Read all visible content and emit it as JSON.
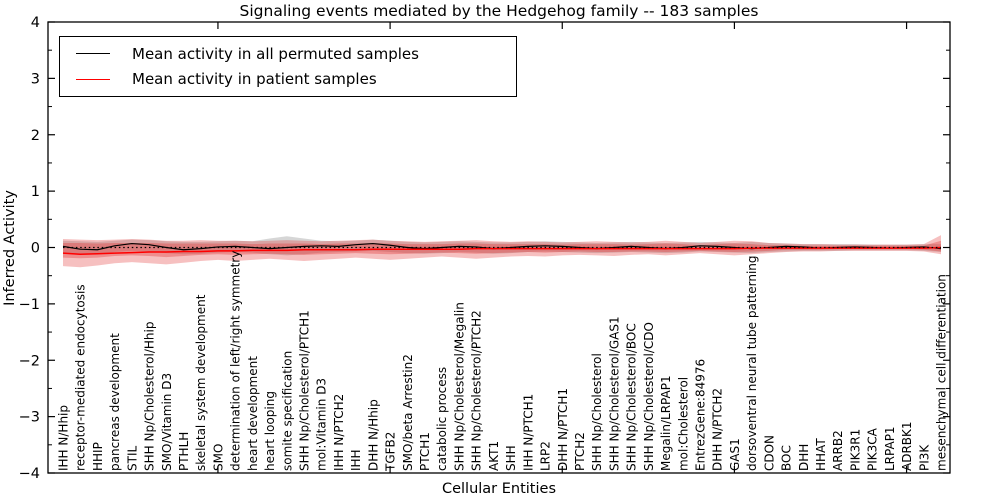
{
  "title": "Signaling events mediated by the Hedgehog family -- 183 samples",
  "axes": {
    "xlabel": "Cellular Entities",
    "ylabel": "Inferred Activity"
  },
  "legend": {
    "position": "upper left",
    "items": [
      {
        "label": "Mean activity in all permuted samples",
        "color": "#000000"
      },
      {
        "label": "Mean activity in patient samples",
        "color": "#ff0000"
      }
    ]
  },
  "chart_data": {
    "type": "line",
    "title": "Signaling events mediated by the Hedgehog family -- 183 samples",
    "xlabel": "Cellular Entities",
    "ylabel": "Inferred Activity",
    "ylim": [
      -4,
      4
    ],
    "yticks": [
      4,
      3,
      2,
      1,
      0,
      -1,
      -2,
      -3,
      -4
    ],
    "y_minor_step": 0.5,
    "x_major_ticks_at_category_numbers": [
      10,
      20,
      30,
      40,
      50
    ],
    "grid": false,
    "zero_line": {
      "style": "dotted",
      "color": "#000000",
      "y": 0
    },
    "categories": [
      "IHH N/Hhip",
      "receptor-mediated endocytosis",
      "HHIP",
      "pancreas development",
      "STIL",
      "SHH Np/Cholesterol/Hhip",
      "SMO/Vitamin D3",
      "PTHLH",
      "skeletal system development",
      "SMO",
      "determination of left/right symmetry",
      "heart development",
      "heart looping",
      "somite specification",
      "SHH Np/Cholesterol/PTCH1",
      "mol:Vitamin D3",
      "IHH N/PTCH2",
      "IHH",
      "DHH N/Hhip",
      "TGFB2",
      "SMO/beta Arrestin2",
      "PTCH1",
      "catabolic process",
      "SHH Np/Cholesterol/Megalin",
      "SHH Np/Cholesterol/PTCH2",
      "AKT1",
      "SHH",
      "IHH N/PTCH1",
      "LRP2",
      "DHH N/PTCH1",
      "PTCH2",
      "SHH Np/Cholesterol",
      "SHH Np/Cholesterol/GAS1",
      "SHH Np/Cholesterol/BOC",
      "SHH Np/Cholesterol/CDO",
      "Megalin/LRPAP1",
      "mol:Cholesterol",
      "EntrezGene:84976",
      "DHH N/PTCH2",
      "GAS1",
      "dorsoventral neural tube patterning",
      "CDON",
      "BOC",
      "DHH",
      "HHAT",
      "ARRB2",
      "PIK3R1",
      "PIK3CA",
      "LRPAP1",
      "ADRBK1",
      "PI3K",
      "mesenchymal cell differentiation"
    ],
    "series": [
      {
        "name": "Mean activity in all permuted samples",
        "color": "#000000",
        "values": [
          0.02,
          -0.03,
          -0.04,
          0.03,
          0.07,
          0.05,
          0.0,
          -0.04,
          -0.02,
          0.01,
          0.02,
          0.0,
          -0.02,
          0.0,
          0.02,
          0.03,
          0.02,
          0.05,
          0.07,
          0.04,
          0.0,
          -0.02,
          0.0,
          0.02,
          0.01,
          -0.02,
          0.0,
          0.02,
          0.03,
          0.02,
          0.0,
          -0.02,
          0.0,
          0.02,
          0.0,
          -0.02,
          0.0,
          0.03,
          0.02,
          0.0,
          -0.02,
          0.0,
          0.02,
          0.01,
          -0.01,
          0.0,
          0.01,
          0.0,
          -0.01,
          0.0,
          0.01,
          -0.02
        ]
      },
      {
        "name": "Mean activity in patient samples",
        "color": "#ff0000",
        "values": [
          -0.1,
          -0.12,
          -0.11,
          -0.1,
          -0.09,
          -0.08,
          -0.08,
          -0.07,
          -0.07,
          -0.06,
          -0.06,
          -0.05,
          -0.05,
          -0.05,
          -0.04,
          -0.04,
          -0.04,
          -0.04,
          -0.03,
          -0.03,
          -0.03,
          -0.03,
          -0.03,
          -0.03,
          -0.02,
          -0.02,
          -0.02,
          -0.02,
          -0.02,
          -0.02,
          -0.02,
          -0.02,
          -0.02,
          -0.02,
          -0.02,
          -0.02,
          -0.02,
          -0.02,
          -0.02,
          -0.02,
          -0.01,
          -0.01,
          -0.01,
          -0.01,
          -0.01,
          -0.01,
          -0.01,
          -0.01,
          -0.01,
          -0.01,
          -0.01,
          0.0
        ]
      }
    ],
    "bands": [
      {
        "name": "permuted samples range",
        "color": "#999999",
        "opacity": 0.4,
        "upper": [
          0.12,
          0.11,
          0.1,
          0.12,
          0.14,
          0.13,
          0.11,
          0.1,
          0.1,
          0.11,
          0.12,
          0.11,
          0.16,
          0.2,
          0.16,
          0.12,
          0.11,
          0.12,
          0.14,
          0.12,
          0.1,
          0.09,
          0.1,
          0.11,
          0.1,
          0.09,
          0.09,
          0.1,
          0.11,
          0.1,
          0.09,
          0.08,
          0.09,
          0.1,
          0.09,
          0.08,
          0.09,
          0.1,
          0.09,
          0.08,
          0.1,
          0.08,
          0.07,
          0.06,
          0.06,
          0.06,
          0.06,
          0.05,
          0.05,
          0.05,
          0.06,
          0.06
        ],
        "lower": [
          -0.1,
          -0.12,
          -0.12,
          -0.08,
          -0.06,
          -0.07,
          -0.1,
          -0.12,
          -0.11,
          -0.09,
          -0.08,
          -0.09,
          -0.12,
          -0.14,
          -0.12,
          -0.09,
          -0.08,
          -0.07,
          -0.06,
          -0.08,
          -0.1,
          -0.11,
          -0.1,
          -0.08,
          -0.09,
          -0.11,
          -0.1,
          -0.08,
          -0.07,
          -0.08,
          -0.09,
          -0.1,
          -0.09,
          -0.08,
          -0.09,
          -0.1,
          -0.09,
          -0.07,
          -0.08,
          -0.09,
          -0.1,
          -0.08,
          -0.07,
          -0.06,
          -0.06,
          -0.06,
          -0.05,
          -0.05,
          -0.05,
          -0.05,
          -0.06,
          -0.08
        ]
      },
      {
        "name": "patient samples outer range",
        "color": "#e03030",
        "opacity": 0.3,
        "upper": [
          0.15,
          0.14,
          0.13,
          0.14,
          0.15,
          0.14,
          0.12,
          0.12,
          0.13,
          0.12,
          0.12,
          0.11,
          0.12,
          0.13,
          0.12,
          0.11,
          0.12,
          0.13,
          0.14,
          0.12,
          0.11,
          0.1,
          0.11,
          0.12,
          0.13,
          0.11,
          0.1,
          0.11,
          0.1,
          0.09,
          0.1,
          0.11,
          0.1,
          0.09,
          0.1,
          0.12,
          0.1,
          0.08,
          0.1,
          0.12,
          0.11,
          0.08,
          0.07,
          0.06,
          0.06,
          0.05,
          0.05,
          0.05,
          0.05,
          0.05,
          0.06,
          0.22
        ],
        "lower": [
          -0.33,
          -0.35,
          -0.32,
          -0.28,
          -0.26,
          -0.28,
          -0.3,
          -0.27,
          -0.24,
          -0.22,
          -0.24,
          -0.22,
          -0.2,
          -0.22,
          -0.24,
          -0.22,
          -0.2,
          -0.18,
          -0.2,
          -0.22,
          -0.2,
          -0.18,
          -0.16,
          -0.18,
          -0.2,
          -0.18,
          -0.16,
          -0.15,
          -0.16,
          -0.14,
          -0.13,
          -0.14,
          -0.15,
          -0.13,
          -0.12,
          -0.14,
          -0.12,
          -0.1,
          -0.12,
          -0.14,
          -0.12,
          -0.1,
          -0.08,
          -0.07,
          -0.07,
          -0.06,
          -0.06,
          -0.06,
          -0.06,
          -0.06,
          -0.07,
          -0.12
        ]
      },
      {
        "name": "patient samples inner range",
        "color": "#e03030",
        "opacity": 0.35,
        "upper": [
          0.08,
          0.08,
          0.07,
          0.08,
          0.08,
          0.08,
          0.07,
          0.07,
          0.07,
          0.07,
          0.07,
          0.06,
          0.07,
          0.07,
          0.07,
          0.06,
          0.07,
          0.07,
          0.08,
          0.07,
          0.06,
          0.06,
          0.06,
          0.07,
          0.07,
          0.06,
          0.06,
          0.06,
          0.06,
          0.05,
          0.06,
          0.06,
          0.06,
          0.05,
          0.06,
          0.07,
          0.06,
          0.04,
          0.06,
          0.07,
          0.06,
          0.04,
          0.04,
          0.03,
          0.03,
          0.03,
          0.03,
          0.03,
          0.03,
          0.03,
          0.03,
          0.12
        ],
        "lower": [
          -0.18,
          -0.19,
          -0.18,
          -0.15,
          -0.14,
          -0.15,
          -0.17,
          -0.15,
          -0.13,
          -0.12,
          -0.13,
          -0.12,
          -0.11,
          -0.12,
          -0.13,
          -0.12,
          -0.11,
          -0.1,
          -0.11,
          -0.12,
          -0.11,
          -0.1,
          -0.09,
          -0.1,
          -0.11,
          -0.1,
          -0.09,
          -0.08,
          -0.09,
          -0.08,
          -0.07,
          -0.08,
          -0.08,
          -0.07,
          -0.07,
          -0.08,
          -0.07,
          -0.06,
          -0.07,
          -0.08,
          -0.07,
          -0.06,
          -0.04,
          -0.04,
          -0.04,
          -0.03,
          -0.03,
          -0.03,
          -0.03,
          -0.03,
          -0.04,
          -0.07
        ]
      }
    ]
  }
}
